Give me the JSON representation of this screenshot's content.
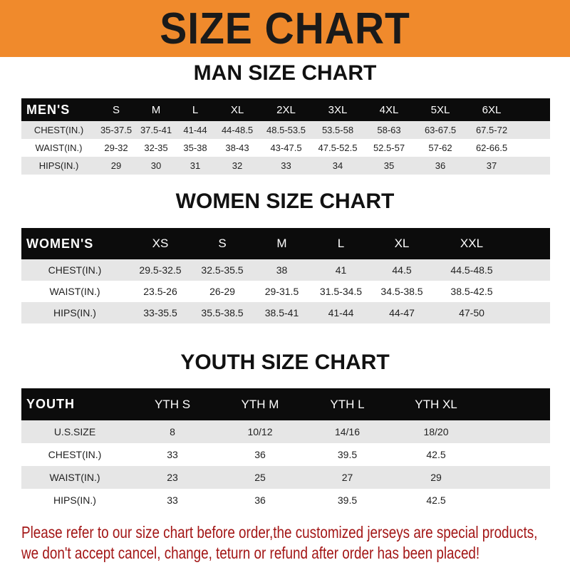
{
  "banner": {
    "title": "SIZE CHART",
    "color": "#f08a2c"
  },
  "men": {
    "title": "MAN SIZE CHART",
    "header": [
      "MEN'S",
      "S",
      "M",
      "L",
      "XL",
      "2XL",
      "3XL",
      "4XL",
      "5XL",
      "6XL"
    ],
    "rows": [
      [
        "CHEST(IN.)",
        "35-37.5",
        "37.5-41",
        "41-44",
        "44-48.5",
        "48.5-53.5",
        "53.5-58",
        "58-63",
        "63-67.5",
        "67.5-72"
      ],
      [
        "WAIST(IN.)",
        "29-32",
        "32-35",
        "35-38",
        "38-43",
        "43-47.5",
        "47.5-52.5",
        "52.5-57",
        "57-62",
        "62-66.5"
      ],
      [
        "HIPS(IN.)",
        "29",
        "30",
        "31",
        "32",
        "33",
        "34",
        "35",
        "36",
        "37"
      ]
    ]
  },
  "women": {
    "title": "WOMEN SIZE CHART",
    "header": [
      "WOMEN'S",
      "XS",
      "S",
      "M",
      "L",
      "XL",
      "XXL"
    ],
    "rows": [
      [
        "CHEST(IN.)",
        "29.5-32.5",
        "32.5-35.5",
        "38",
        "41",
        "44.5",
        "44.5-48.5"
      ],
      [
        "WAIST(IN.)",
        "23.5-26",
        "26-29",
        "29-31.5",
        "31.5-34.5",
        "34.5-38.5",
        "38.5-42.5"
      ],
      [
        "HIPS(IN.)",
        "33-35.5",
        "35.5-38.5",
        "38.5-41",
        "41-44",
        "44-47",
        "47-50"
      ]
    ]
  },
  "youth": {
    "title": "YOUTH SIZE CHART",
    "header": [
      "YOUTH",
      "YTH S",
      "YTH M",
      "YTH L",
      "YTH XL"
    ],
    "rows": [
      [
        "U.S.SIZE",
        "8",
        "10/12",
        "14/16",
        "18/20"
      ],
      [
        "CHEST(IN.)",
        "33",
        "36",
        "39.5",
        "42.5"
      ],
      [
        "WAIST(IN.)",
        "23",
        "25",
        "27",
        "29"
      ],
      [
        "HIPS(IN.)",
        "33",
        "36",
        "39.5",
        "42.5"
      ]
    ]
  },
  "note": {
    "line1": "Please refer to our size chart before order,the customized jerseys are special products,",
    "line2": "we don't accept cancel, change, teturn or refund after order has been placed!",
    "color": "#a31616"
  }
}
